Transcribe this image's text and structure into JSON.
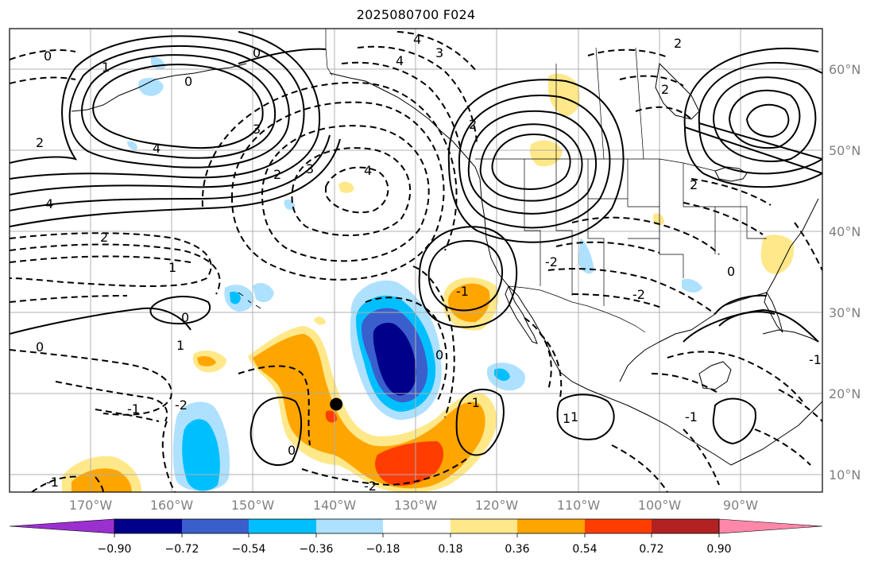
{
  "title": "2025080700 F024",
  "lat_labels": [
    "60°N",
    "50°N",
    "40°N",
    "30°N",
    "20°N",
    "10°N"
  ],
  "lon_labels": [
    "170°W",
    "160°W",
    "150°W",
    "140°W",
    "130°W",
    "120°W",
    "110°W",
    "100°W",
    "90°W"
  ],
  "colorbar": {
    "ticks": [
      "−0.90",
      "−0.72",
      "−0.54",
      "−0.36",
      "−0.18",
      "0.18",
      "0.36",
      "0.54",
      "0.72",
      "0.90"
    ],
    "colors": [
      "#9b30d0",
      "#00008b",
      "#3a5fcd",
      "#00bfff",
      "#aee1ff",
      "#ffffff",
      "#ffe88a",
      "#ffa500",
      "#ff3d00",
      "#b22222",
      "#ff88aa"
    ]
  },
  "contour_labels": [
    "0",
    "0",
    "4",
    "4",
    "3",
    "2",
    "0",
    "4",
    "3",
    "1",
    "2",
    "4",
    "4",
    "3",
    "2",
    "2",
    "1",
    "0",
    "0",
    "1",
    "-1",
    "-2",
    "-1",
    "-2",
    "0",
    "0",
    "-2",
    "2",
    "-1",
    "-1",
    "-2",
    "1",
    "1",
    "-1",
    "2",
    "2",
    "0",
    "-1"
  ],
  "map": {
    "projection": "cylindrical",
    "extent_deg": {
      "lon": [
        -178,
        -78
      ],
      "lat": [
        8,
        65
      ]
    },
    "grid": true,
    "storm_marker": {
      "lon": -137.8,
      "lat": 18.8
    },
    "colors": {
      "contour": "#000000",
      "coastline": "#000000",
      "gridline": "#b0b0b0",
      "label": "#808080"
    }
  }
}
